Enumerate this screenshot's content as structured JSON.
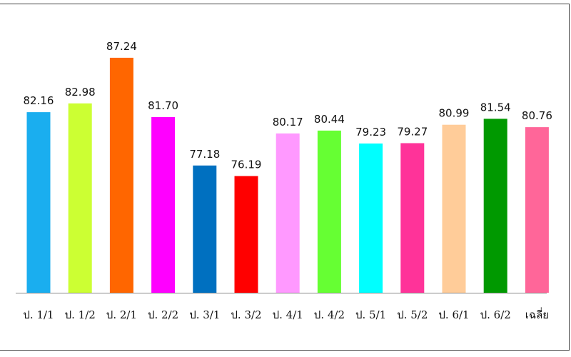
{
  "chart_data": {
    "type": "bar",
    "categories": [
      "ป. 1/1",
      "ป. 1/2",
      "ป. 2/1",
      "ป. 2/2",
      "ป. 3/1",
      "ป. 3/2",
      "ป. 4/1",
      "ป. 4/2",
      "ป. 5/1",
      "ป. 5/2",
      "ป. 6/1",
      "ป. 6/2",
      "เฉลี่ย"
    ],
    "values": [
      82.16,
      82.98,
      87.24,
      81.7,
      77.18,
      76.19,
      80.17,
      80.44,
      79.23,
      79.27,
      80.99,
      81.54,
      80.76
    ],
    "value_labels": [
      "82.16",
      "82.98",
      "87.24",
      "81.70",
      "77.18",
      "76.19",
      "80.17",
      "80.44",
      "79.23",
      "79.27",
      "80.99",
      "81.54",
      "80.76"
    ],
    "colors": [
      "#1aaeef",
      "#ccff33",
      "#ff6600",
      "#ff00ff",
      "#0070c0",
      "#ff0000",
      "#ff99ff",
      "#66ff33",
      "#00ffff",
      "#ff3399",
      "#ffcc99",
      "#009900",
      "#ff6699"
    ],
    "title": "",
    "xlabel": "",
    "ylabel": "",
    "ylim": [
      65.3,
      89.3
    ],
    "grid": false,
    "legend": "none",
    "axis_color": "#888888"
  }
}
